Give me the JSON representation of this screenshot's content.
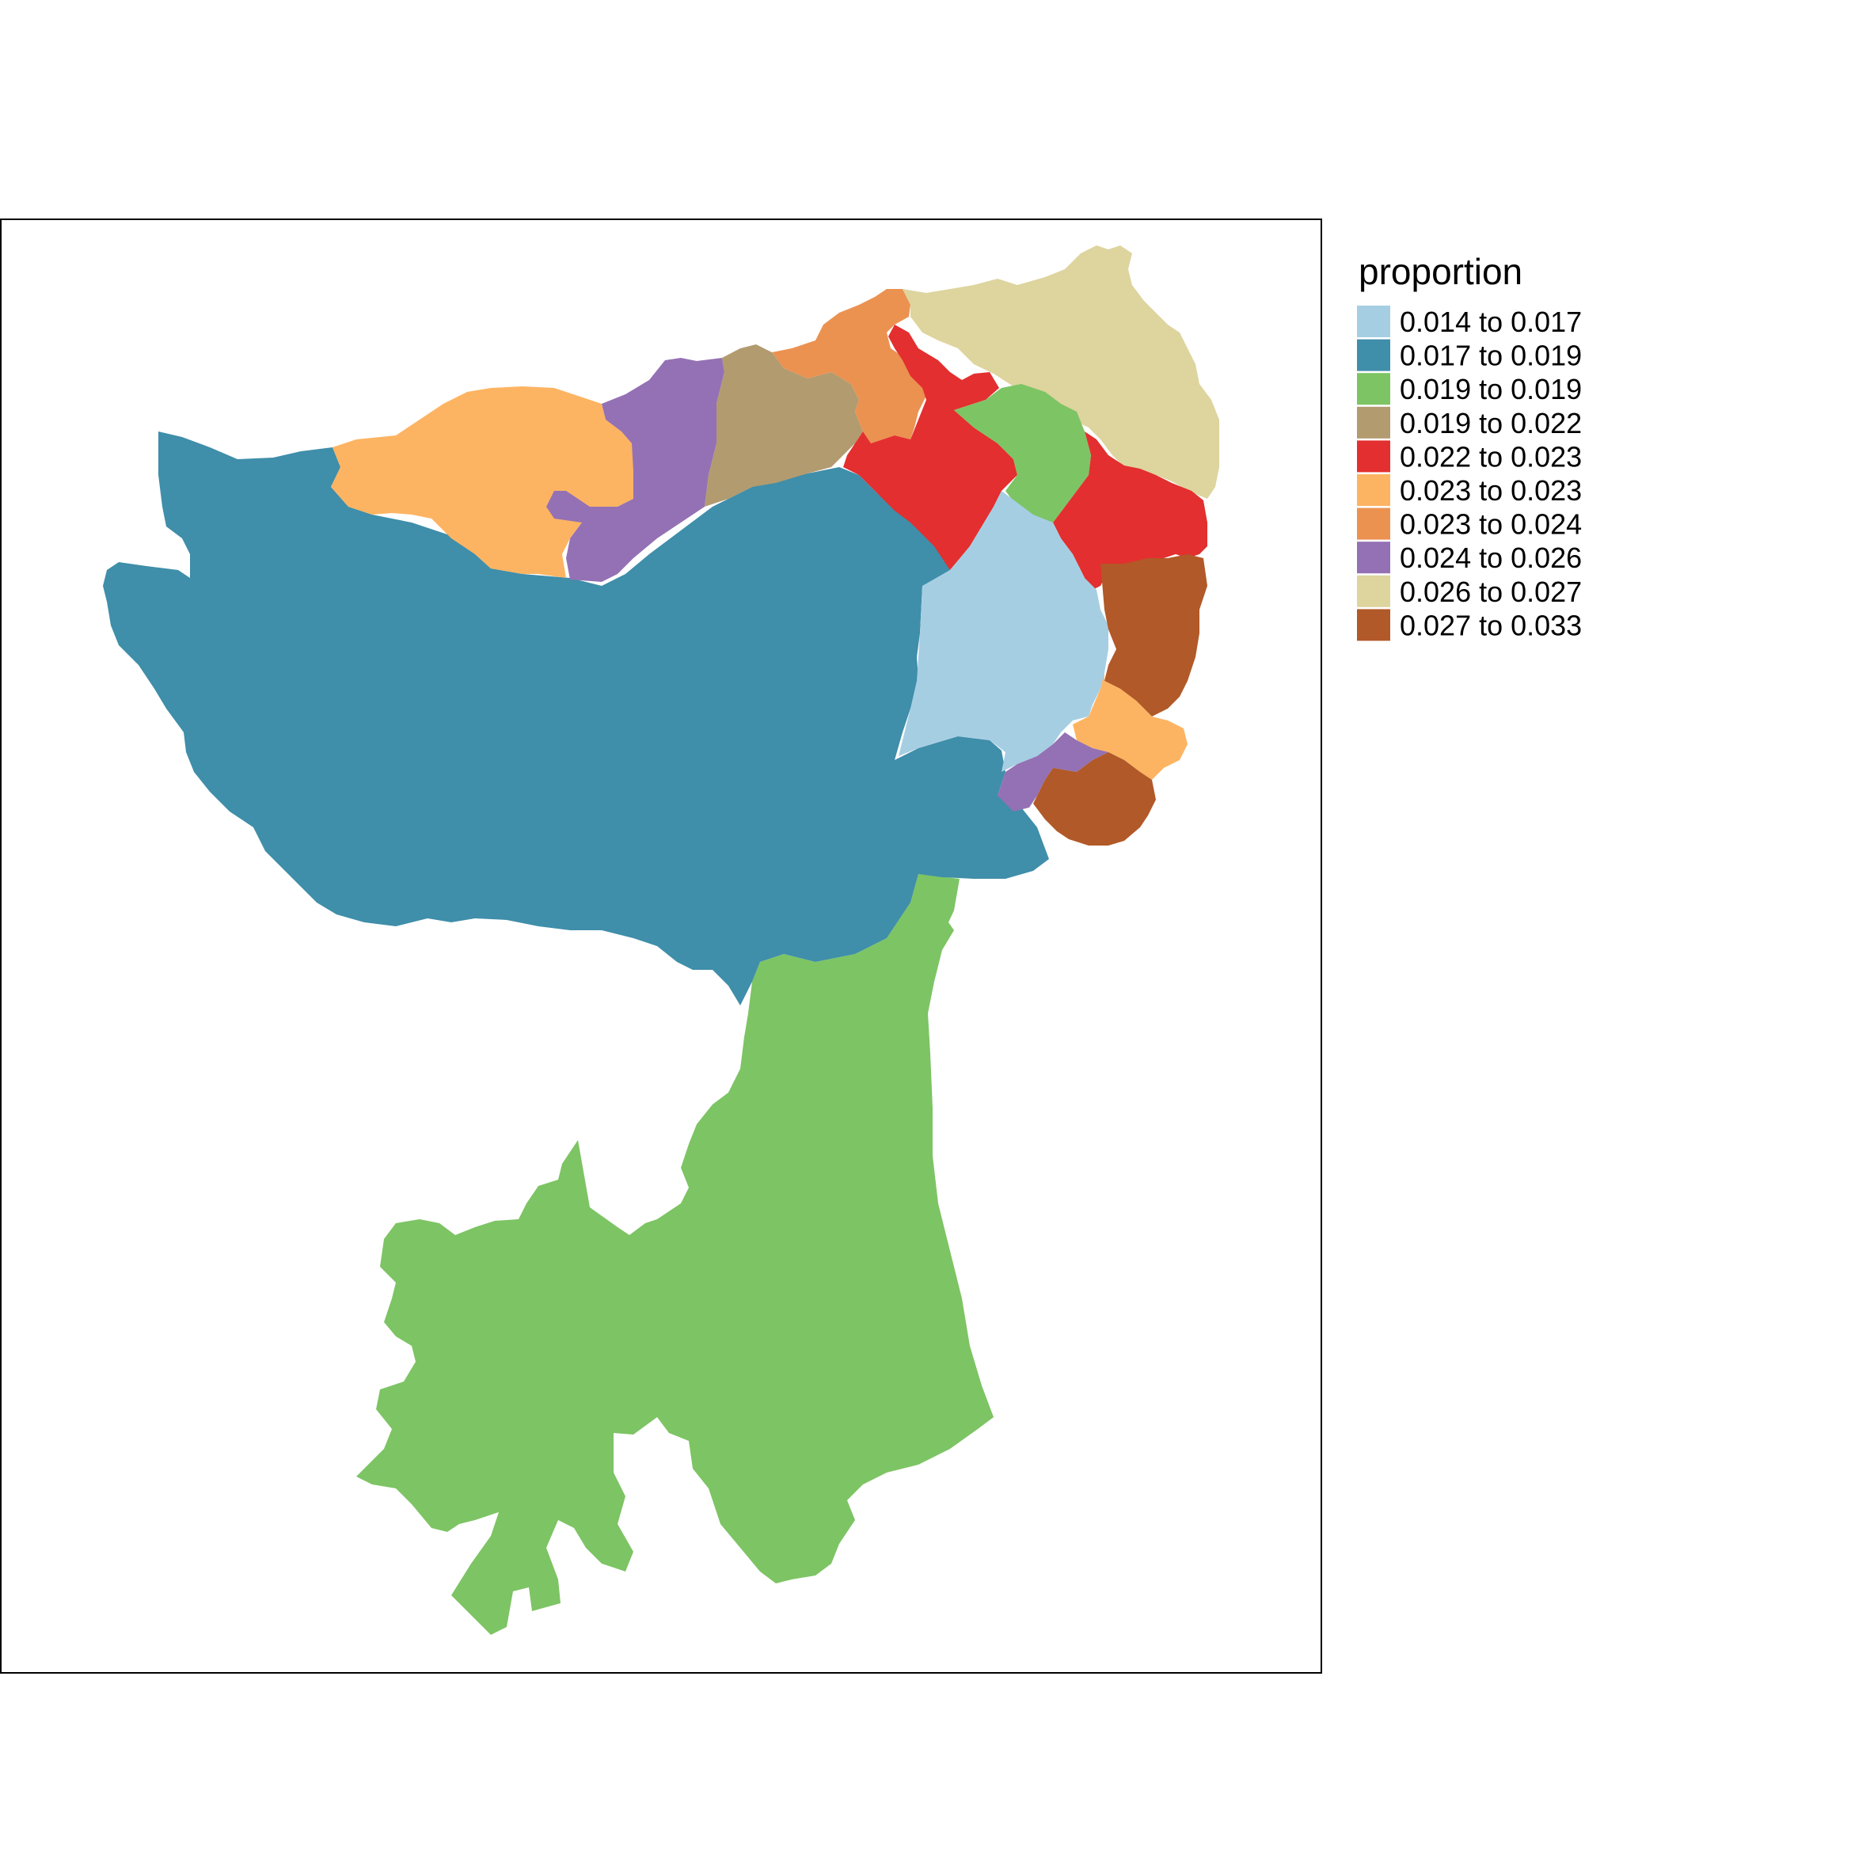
{
  "map": {
    "legend": {
      "title": "proportion",
      "items": [
        {
          "label": "0.014 to 0.017",
          "color": "#A6CEE3"
        },
        {
          "label": "0.017 to 0.019",
          "color": "#3F8EAA"
        },
        {
          "label": "0.019 to 0.019",
          "color": "#7DC464"
        },
        {
          "label": "0.019 to 0.022",
          "color": "#B29B6F"
        },
        {
          "label": "0.022 to 0.023",
          "color": "#E32F2F"
        },
        {
          "label": "0.023 to 0.023",
          "color": "#FDB462"
        },
        {
          "label": "0.023 to 0.024",
          "color": "#EB9251"
        },
        {
          "label": "0.024 to 0.026",
          "color": "#9471B4"
        },
        {
          "label": "0.026 to 0.027",
          "color": "#DED49E"
        },
        {
          "label": "0.027 to 0.033",
          "color": "#B15928"
        }
      ]
    }
  }
}
